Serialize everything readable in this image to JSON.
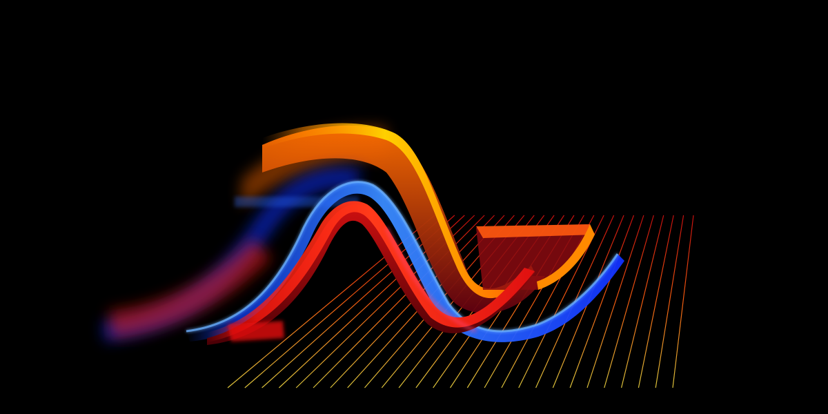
{
  "scene": {
    "background": "#000000",
    "grid": {
      "colors": [
        "#c8e040",
        "#ffb020",
        "#ff4010",
        "#d01010"
      ]
    },
    "ribbons": [
      {
        "name": "orange-ribbon",
        "colors": [
          "#ff7a00",
          "#ffd000",
          "#ff9a00",
          "#ff5a00"
        ]
      },
      {
        "name": "blue-ribbon",
        "colors": [
          "#1040ff",
          "#3a8cff",
          "#1030ff"
        ]
      },
      {
        "name": "red-ribbon",
        "colors": [
          "#ff1a10",
          "#ff3a1a",
          "#e01010"
        ]
      }
    ]
  }
}
